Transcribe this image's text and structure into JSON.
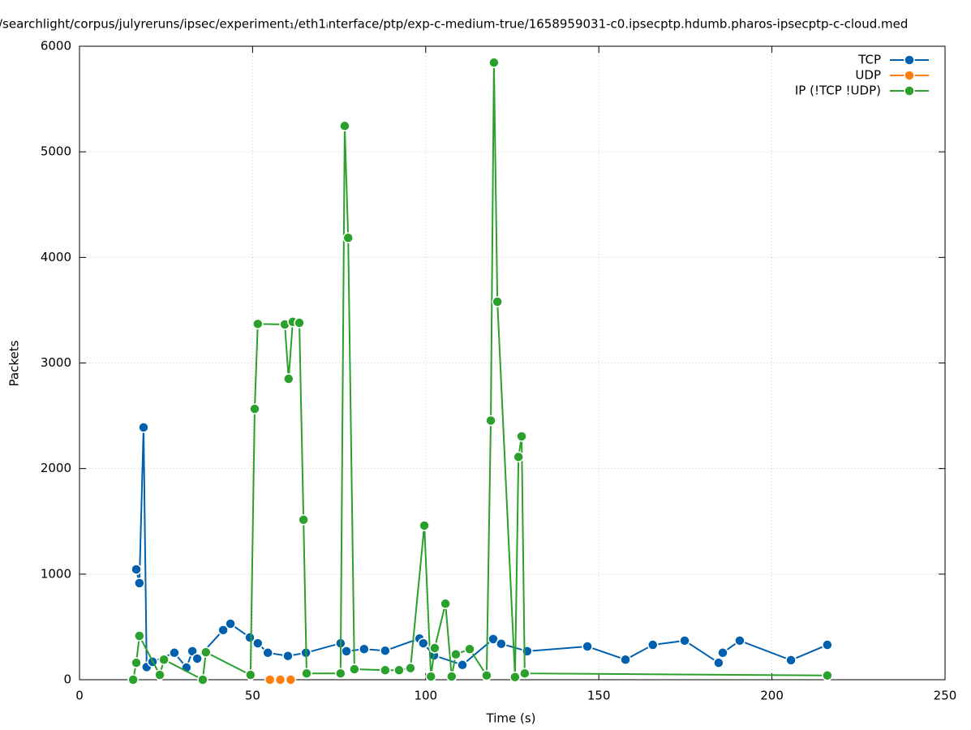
{
  "chart_data": {
    "type": "line",
    "title": "/searchlight/corpus/julyreruns/ipsec/experiment₁/eth1ᵢnterface/ptp/exp-c-medium-true/1658959031-c0.ipsecptp.hdumb.pharos-ipsecptp-c-cloud.med",
    "x_label": "Time (s)",
    "y_label": "Packets",
    "xlim": [
      0,
      250
    ],
    "xticks": [
      0,
      50,
      100,
      150,
      200,
      250
    ],
    "ylim": [
      0,
      6000
    ],
    "yticks": [
      0,
      1000,
      2000,
      3000,
      4000,
      5000,
      6000
    ],
    "grid": true,
    "legend": "top-right",
    "series": [
      {
        "name": "TCP",
        "color": "#0060ad",
        "x": [
          16.4,
          17.3,
          18.5,
          19.4,
          21.1,
          27.4,
          30.9,
          32.6,
          34,
          41.5,
          43.6,
          49.2,
          51.5,
          54.4,
          60.2,
          65.4,
          75.4,
          77.1,
          82.2,
          88.3,
          98.2,
          99.3,
          102.4,
          110.6,
          119.5,
          121.8,
          129.3,
          146.7,
          157.7,
          165.6,
          174.8,
          184.6,
          185.8,
          190.7,
          205.5,
          216
        ],
        "values": [
          1045,
          915,
          2390,
          120,
          170,
          255,
          115,
          270,
          200,
          470,
          530,
          400,
          345,
          255,
          225,
          255,
          345,
          270,
          290,
          275,
          390,
          345,
          230,
          140,
          385,
          340,
          270,
          315,
          190,
          330,
          370,
          160,
          255,
          370,
          185,
          330
        ]
      },
      {
        "name": "UDP",
        "color": "#ff7f0e",
        "x": [
          55,
          58,
          61
        ],
        "values": [
          0,
          0,
          0
        ]
      },
      {
        "name": "IP (!TCP  !UDP)",
        "color": "#2ca02c",
        "x": [
          15.5,
          16.4,
          17.3,
          23.2,
          24.4,
          35.6,
          36.5,
          49.4,
          50.6,
          51.5,
          59.3,
          60.4,
          61.6,
          63.5,
          64.7,
          65.6,
          75.4,
          76.6,
          77.6,
          79.4,
          88.3,
          92.3,
          95.6,
          99.6,
          101.5,
          102.6,
          105.7,
          107.5,
          108.7,
          112.7,
          117.6,
          118.8,
          119.7,
          120.7,
          125.8,
          126.8,
          127.7,
          128.6,
          216
        ],
        "values": [
          0,
          160,
          415,
          45,
          190,
          0,
          260,
          45,
          2565,
          3370,
          3365,
          2850,
          3390,
          3380,
          1515,
          60,
          60,
          5245,
          4185,
          100,
          90,
          90,
          110,
          1460,
          30,
          300,
          720,
          30,
          240,
          290,
          40,
          2455,
          5845,
          3580,
          25,
          2110,
          2305,
          60,
          40
        ]
      }
    ]
  }
}
